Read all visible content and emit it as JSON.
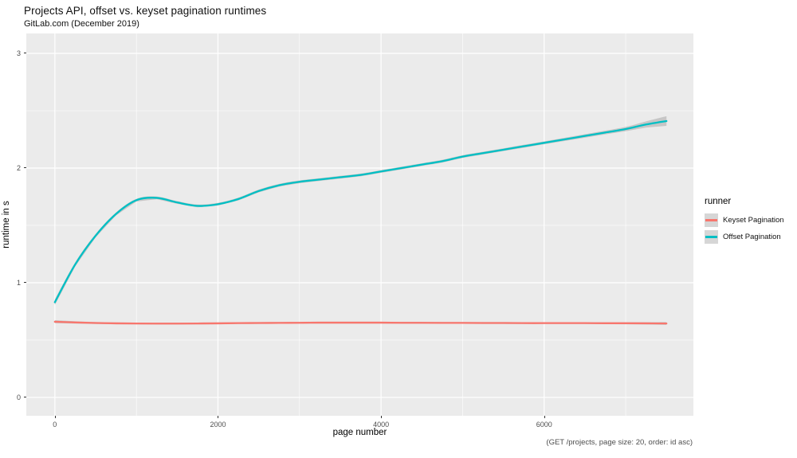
{
  "header": {
    "title": "Projects API, offset vs. keyset pagination runtimes",
    "subtitle": "GitLab.com (December 2019)"
  },
  "caption": "(GET /projects, page size: 20, order: id asc)",
  "legend": {
    "title": "runner",
    "entries": [
      {
        "label": "Keyset Pagination",
        "color": "#F8766D"
      },
      {
        "label": "Offset Pagination",
        "color": "#00BFC4"
      }
    ]
  },
  "chart_data": {
    "type": "line",
    "title": "Projects API, offset vs. keyset pagination runtimes",
    "subtitle": "GitLab.com (December 2019)",
    "caption": "(GET /projects, page size: 20, order: id asc)",
    "xlabel": "page number",
    "ylabel": "runtime in s",
    "legend_title": "runner",
    "legend_position": "right",
    "grid": true,
    "panel_bg": "#EBEBEB",
    "grid_color": "#FFFFFF",
    "band_color": "rgba(105,105,105,0.28)",
    "xlim": [
      -350,
      7830
    ],
    "ylim": [
      -0.16,
      3.1736
    ],
    "x_ticks": [
      0,
      2000,
      4000,
      6000
    ],
    "x_minor_ticks": [
      1000,
      3000,
      5000,
      7000
    ],
    "y_ticks": [
      0,
      1,
      2,
      3
    ],
    "y_minor_ticks": [
      0.5,
      1.5,
      2.5
    ],
    "x": [
      0,
      250,
      500,
      750,
      1000,
      1250,
      1500,
      1750,
      2000,
      2250,
      2500,
      2750,
      3000,
      3250,
      3500,
      3750,
      4000,
      4250,
      4500,
      4750,
      5000,
      5250,
      5500,
      5750,
      6000,
      6250,
      6500,
      6750,
      7000,
      7250,
      7500
    ],
    "series": [
      {
        "name": "Keyset Pagination",
        "color": "#F8766D",
        "values": [
          0.66,
          0.654,
          0.649,
          0.646,
          0.645,
          0.644,
          0.644,
          0.645,
          0.646,
          0.648,
          0.649,
          0.65,
          0.651,
          0.652,
          0.652,
          0.652,
          0.652,
          0.651,
          0.651,
          0.65,
          0.65,
          0.649,
          0.649,
          0.648,
          0.648,
          0.648,
          0.648,
          0.647,
          0.647,
          0.646,
          0.645
        ],
        "ci_halfwidth": [
          0.013,
          0.01,
          0.009,
          0.008,
          0.008,
          0.008,
          0.008,
          0.008,
          0.008,
          0.008,
          0.008,
          0.008,
          0.008,
          0.008,
          0.008,
          0.008,
          0.008,
          0.008,
          0.008,
          0.008,
          0.008,
          0.008,
          0.008,
          0.008,
          0.008,
          0.008,
          0.008,
          0.008,
          0.009,
          0.01,
          0.012
        ]
      },
      {
        "name": "Offset Pagination",
        "color": "#00BFC4",
        "values": [
          0.83,
          1.16,
          1.41,
          1.6,
          1.72,
          1.74,
          1.7,
          1.67,
          1.685,
          1.73,
          1.8,
          1.85,
          1.88,
          1.9,
          1.92,
          1.94,
          1.97,
          2.0,
          2.03,
          2.06,
          2.1,
          2.13,
          2.16,
          2.19,
          2.22,
          2.25,
          2.28,
          2.31,
          2.34,
          2.38,
          2.41
        ],
        "ci_halfwidth": [
          0.025,
          0.018,
          0.015,
          0.013,
          0.012,
          0.012,
          0.012,
          0.012,
          0.012,
          0.012,
          0.012,
          0.012,
          0.012,
          0.012,
          0.012,
          0.012,
          0.012,
          0.012,
          0.012,
          0.012,
          0.012,
          0.012,
          0.012,
          0.013,
          0.013,
          0.014,
          0.015,
          0.016,
          0.019,
          0.027,
          0.042
        ]
      }
    ]
  }
}
